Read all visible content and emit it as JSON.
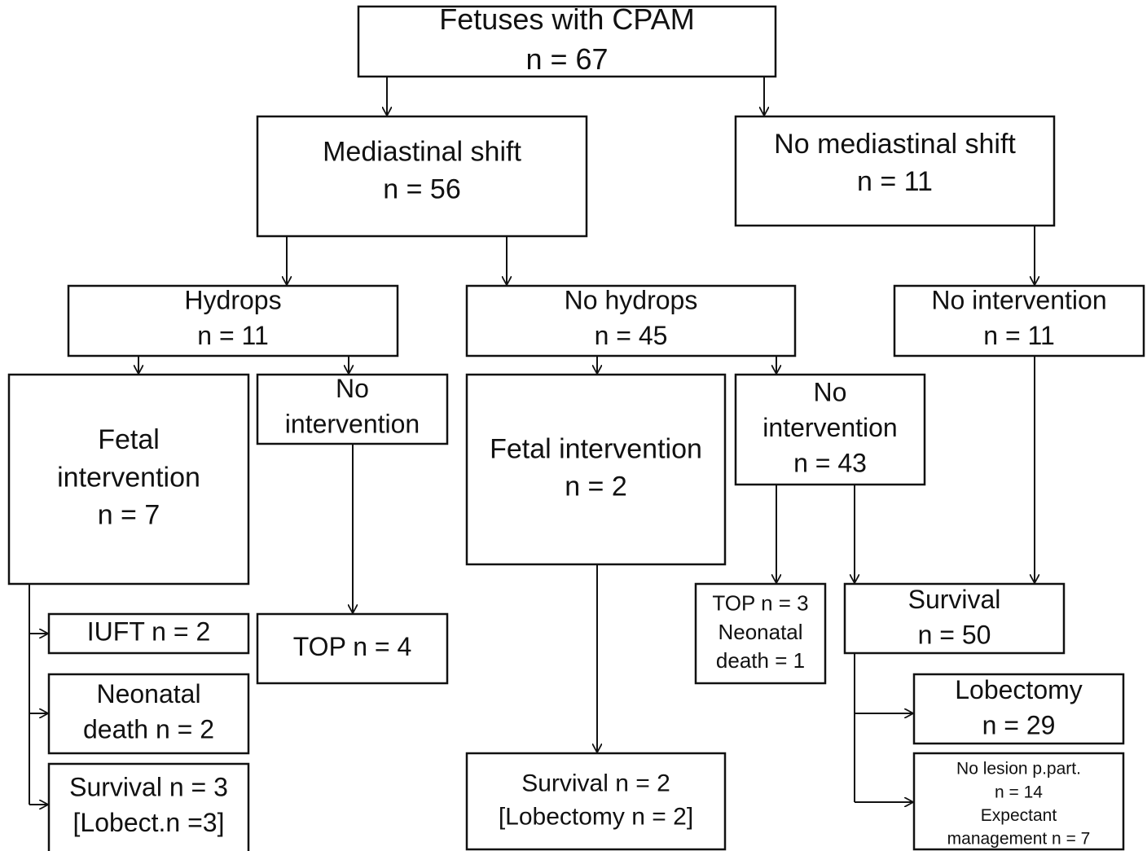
{
  "nodes": [
    {
      "lines": [
        "Fetuses with CPAM",
        "n = 67"
      ]
    },
    {
      "lines": [
        "Mediastinal shift",
        "n = 56"
      ]
    },
    {
      "lines": [
        "No mediastinal shift",
        "n = 11"
      ]
    },
    {
      "lines": [
        "Hydrops",
        "n = 11"
      ]
    },
    {
      "lines": [
        "No hydrops",
        "n = 45"
      ]
    },
    {
      "lines": [
        "No intervention",
        "n = 11"
      ]
    },
    {
      "lines": [
        "Fetal",
        "intervention",
        "n = 7"
      ]
    },
    {
      "lines": [
        "No",
        "intervention"
      ]
    },
    {
      "lines": [
        "Fetal intervention",
        "n = 2"
      ]
    },
    {
      "lines": [
        "No",
        "intervention",
        "n = 43"
      ]
    },
    {
      "lines": [
        "IUFT n = 2"
      ]
    },
    {
      "lines": [
        "Neonatal",
        "death n = 2"
      ]
    },
    {
      "lines": [
        "Survival n = 3",
        "[Lobect.n =3]"
      ]
    },
    {
      "lines": [
        "TOP n = 4"
      ]
    },
    {
      "lines": [
        "TOP n = 3",
        "Neonatal",
        "death = 1"
      ]
    },
    {
      "lines": [
        "Survival",
        "n = 50"
      ]
    },
    {
      "lines": [
        "Survival n = 2",
        "[Lobectomy n = 2]"
      ]
    },
    {
      "lines": [
        "Lobectomy",
        "n = 29"
      ]
    },
    {
      "lines": [
        "No lesion p.part.",
        "n = 14",
        "Expectant",
        "management n = 7"
      ]
    }
  ]
}
